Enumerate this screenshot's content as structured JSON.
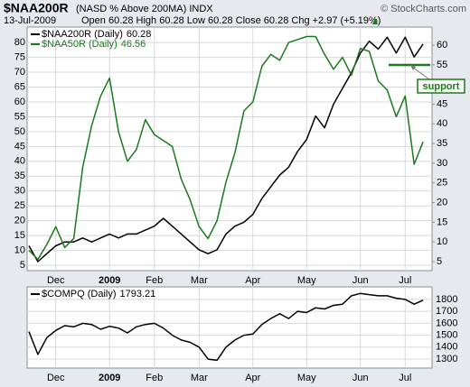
{
  "header": {
    "title": "$NAA200R",
    "subtitle": "(NASD % Above 200MA) INDX",
    "watermark": "© StockCharts.com",
    "date": "13-Jul-2009",
    "quote": "Open 60.28 High 60.28 Low 60.28 Close 60.28 Chg +2.97 (+5.19%)"
  },
  "annotation": "support",
  "chart_data": [
    {
      "type": "line",
      "legend": "upper left",
      "grid": true,
      "xlim": [
        0,
        45
      ],
      "xticks": [
        {
          "value": 3,
          "label": "Dec"
        },
        {
          "value": 9,
          "label": "2009"
        },
        {
          "value": 14,
          "label": "Feb"
        },
        {
          "value": 19,
          "label": "Mar"
        },
        {
          "value": 25,
          "label": "Apr"
        },
        {
          "value": 31,
          "label": "May"
        },
        {
          "value": 37,
          "label": "Jun"
        },
        {
          "value": 42,
          "label": "Jul"
        }
      ],
      "ylim": [
        3.2,
        85.2
      ],
      "yticks": [
        5,
        10,
        15,
        20,
        25,
        30,
        35,
        40,
        45,
        50,
        55,
        60,
        65,
        70,
        75,
        80
      ],
      "y2lim": [
        2.7,
        64.6
      ],
      "y2ticks": [
        5,
        10,
        15,
        20,
        25,
        30,
        35,
        40,
        45,
        50,
        55,
        60
      ],
      "series": [
        {
          "name": "$NAA200R (Daily)",
          "color": "#000000",
          "axis": "y2",
          "values": [
            9,
            5,
            7,
            9,
            10,
            10,
            11,
            10,
            11,
            12,
            11,
            12,
            12,
            13,
            14,
            16,
            14,
            12,
            10,
            8,
            7,
            8,
            12,
            14,
            15,
            17,
            21,
            24,
            27,
            29,
            33,
            36,
            42,
            39,
            45,
            49,
            53,
            58,
            61,
            59,
            62,
            58,
            62,
            57,
            60.28
          ]
        },
        {
          "name": "$NAA50R (Daily)",
          "color": "#1a7a1a",
          "axis": "y",
          "values": [
            10,
            7,
            12,
            18,
            11,
            14,
            38,
            52,
            62,
            68,
            50,
            40,
            44,
            54,
            49,
            47,
            45,
            34,
            27,
            18,
            14,
            20,
            33,
            43,
            57,
            60,
            72,
            76,
            74,
            80,
            81,
            82,
            82,
            76,
            71,
            75,
            69,
            78,
            77,
            67,
            64,
            55,
            62,
            39,
            46.56
          ]
        }
      ]
    },
    {
      "type": "line",
      "legend": "upper left",
      "grid": true,
      "y_axis_side": "right",
      "xlim": [
        0,
        45
      ],
      "xticks": [
        {
          "value": 3,
          "label": "Dec"
        },
        {
          "value": 9,
          "label": "2009"
        },
        {
          "value": 14,
          "label": "Feb"
        },
        {
          "value": 19,
          "label": "Mar"
        },
        {
          "value": 25,
          "label": "Apr"
        },
        {
          "value": 31,
          "label": "May"
        },
        {
          "value": 37,
          "label": "Jun"
        },
        {
          "value": 42,
          "label": "Jul"
        }
      ],
      "ylim": [
        1225,
        1905
      ],
      "yticks": [
        1300,
        1400,
        1500,
        1600,
        1700,
        1800
      ],
      "series": [
        {
          "name": "$COMPQ (Daily)",
          "color": "#000000",
          "values": [
            1530,
            1340,
            1480,
            1540,
            1580,
            1570,
            1600,
            1590,
            1550,
            1575,
            1560,
            1520,
            1570,
            1590,
            1600,
            1560,
            1500,
            1460,
            1440,
            1400,
            1300,
            1290,
            1400,
            1460,
            1500,
            1510,
            1590,
            1640,
            1680,
            1640,
            1700,
            1690,
            1730,
            1720,
            1750,
            1760,
            1830,
            1850,
            1840,
            1830,
            1830,
            1810,
            1800,
            1760,
            1793.21
          ]
        }
      ]
    }
  ]
}
